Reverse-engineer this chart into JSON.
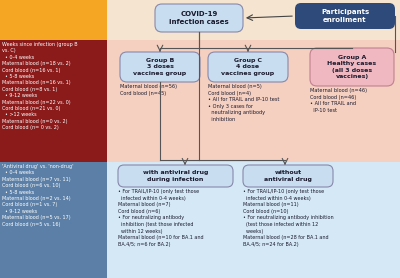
{
  "bg_top_left_orange": "#F5A623",
  "bg_top_right": "#F5E4D0",
  "bg_middle_left": "#8B1A1A",
  "bg_middle_right": "#F5D0C0",
  "bg_bottom_left": "#5B7FA6",
  "bg_bottom_right": "#D5E8F5",
  "enrollment_box_color": "#2E4A7A",
  "covid_box_color": "#C8DDF0",
  "group_b_color": "#C8DDF0",
  "group_c_color": "#C8DDF0",
  "group_a_color": "#F0B8C0",
  "antiviral_box_color": "#C8DDF0",
  "no_antiviral_box_color": "#C8DDF0",
  "top_left_text": "Weeks since infection (group B\nvs. C)\n  • 0-4 weeks\nMaternal blood (n=18 vs. 2)\nCord blood (n=16 vs. 1)\n  • 5-8 weeks\nMaternal blood (n=16 vs. 1)\nCord blood (n=8 vs. 1)\n  • 9-12 weeks\nMaternal blood (n=22 vs. 0)\nCord blood (n=21 vs. 0)\n  • >12 weeks\nMaternal blood (n=0 vs. 2)\nCord blood (n= 0 vs. 2)",
  "bottom_left_text": "'Antiviral drug' vs. 'non-drug'\n  • 0-4 weeks\nMaternal blood (n=7 vs. 11)\nCord blood (n=6 vs. 10)\n  • 5-8 weeks\nMaternal blood (n=2 vs. 14)\nCord blood (n=1 vs. 7)\n  • 9-12 weeks\nMaternal blood (n=5 vs. 17)\nCord blood (n=5 vs. 16)",
  "group_b_title": "Group B\n3 doses\nvaccines group",
  "group_b_detail": "Maternal blood (n=56)\nCord blood (n=45)",
  "group_c_title": "Group C\n4 dose\nvaccines group",
  "group_c_detail": "Maternal blood (n=5)\nCord blood (n=4)\n• All for TRAIL and IP-10 test\n• Only 3 cases for\n  neutralizing antibody\n  inhibition",
  "group_a_title": "Group A\nHealthy cases\n(all 3 doses\nvaccines)",
  "group_a_detail": "Maternal blood (n=46)\nCord blood (n=46)\n• All for TRAIL and\n  IP-10 test",
  "antiviral_title": "with antiviral drug\nduring infection",
  "antiviral_detail": "• For TRAIL/IP-10 (only test those\n  infected within 0-4 weeks)\nMaternal blood (n=7)\nCord blood (n=6)\n• For neutralizing antibody\n  inhibition (test those infected\n  within 12 weeks)\nMaternal blood (n=10 for BA.1 and\nBA.4/5; n=6 for BA.2)",
  "no_antiviral_title": "without\nantiviral drug",
  "no_antiviral_detail": "• For TRAIL/IP-10 (only test those\n  infected within 0-4 weeks)\nMaternal blood (n=11)\nCord blood (n=10)\n• For neutralizing antibody inhibition\n  (test those infected within 12\n  weeks)\nMaternal blood (n=28 for BA.1 and\nBA.4/5; n=24 for BA.2)"
}
